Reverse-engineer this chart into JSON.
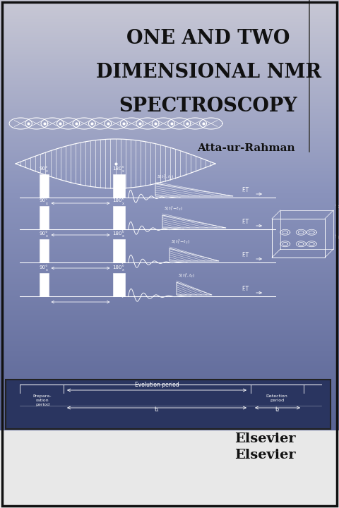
{
  "title_lines": [
    "ONE AND TWO",
    "DIMENSIONAL NMR",
    "SPECTROSCOPY"
  ],
  "author": "Atta-ur-Rahman",
  "publisher": "Elsevier",
  "title_color": "#111111",
  "author_color": "#111111",
  "publisher_color": "#111111",
  "diagram_color": "#ffffff",
  "bg_top_color": "#c5c5d2",
  "bg_mid_color": "#8a92b8",
  "bg_bot_color": "#4a5585",
  "title_fontsize": 19.5,
  "author_fontsize": 11,
  "publisher_fontsize": 14
}
